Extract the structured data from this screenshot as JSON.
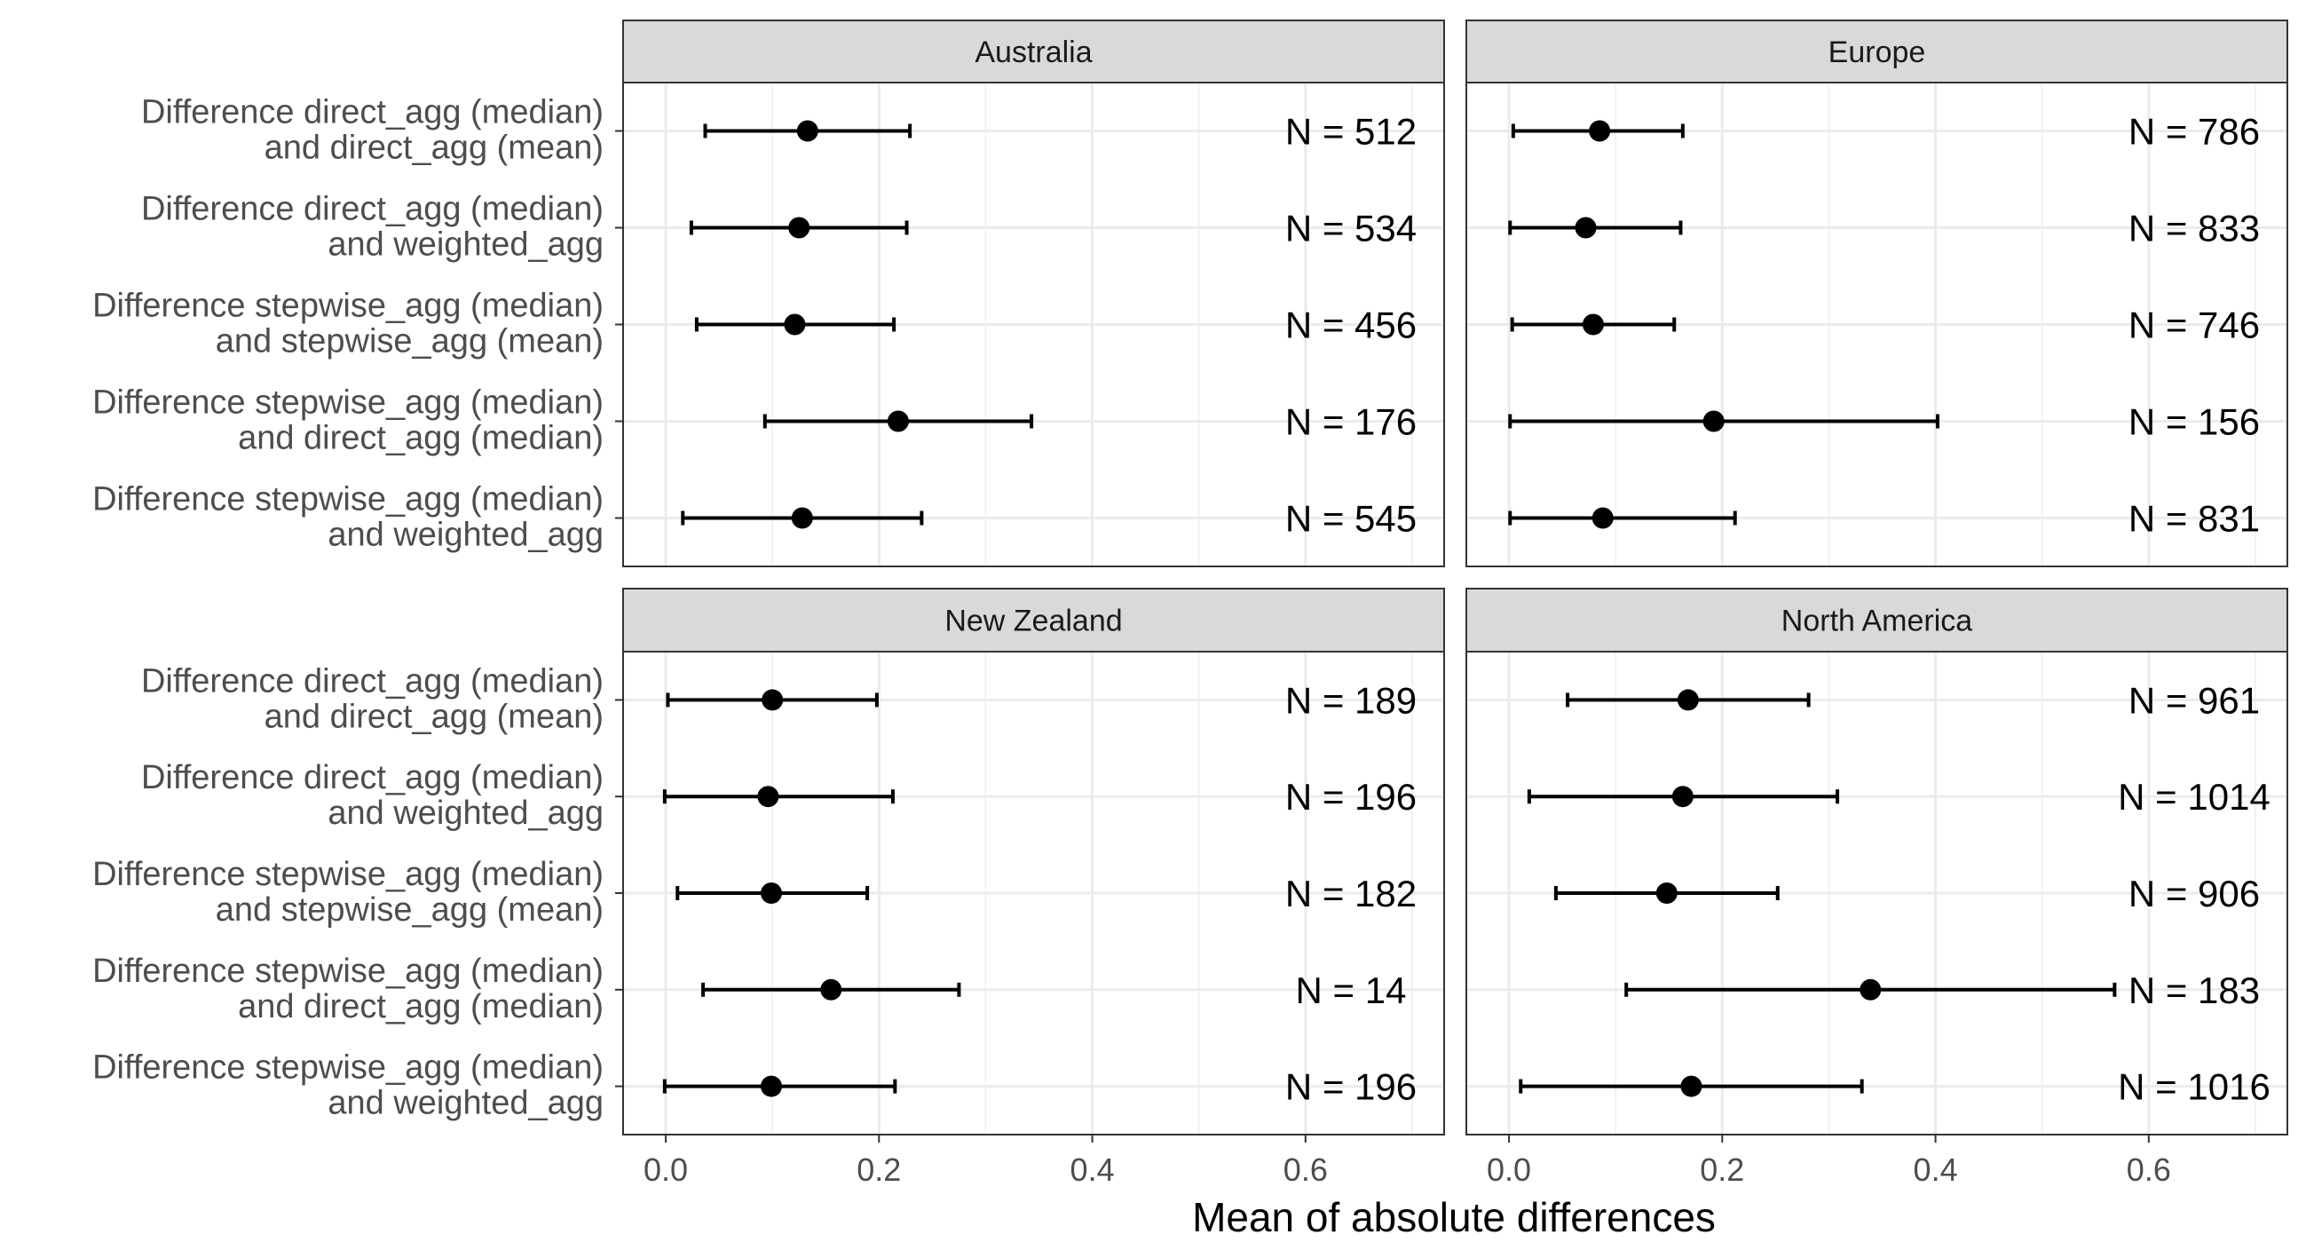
{
  "chart_data": {
    "type": "errorbar-dot",
    "xlabel": "Mean of absolute differences",
    "xlim": [
      -0.04,
      0.73
    ],
    "xticks": [
      0.0,
      0.2,
      0.4,
      0.6
    ],
    "xtick_labels": [
      "0.0",
      "0.2",
      "0.4",
      "0.6"
    ],
    "grid": true,
    "categories": [
      [
        "Difference direct_agg (median)",
        "and direct_agg (mean)"
      ],
      [
        "Difference direct_agg (median)",
        "and weighted_agg"
      ],
      [
        "Difference stepwise_agg (median)",
        "and stepwise_agg (mean)"
      ],
      [
        "Difference stepwise_agg (median)",
        "and direct_agg (median)"
      ],
      [
        "Difference stepwise_agg (median)",
        "and weighted_agg"
      ]
    ],
    "panels": [
      {
        "title": "Australia",
        "mean": [
          0.133,
          0.125,
          0.121,
          0.218,
          0.128
        ],
        "lower": [
          0.037,
          0.024,
          0.029,
          0.093,
          0.016
        ],
        "upper": [
          0.229,
          0.226,
          0.214,
          0.343,
          0.24
        ],
        "n_labels": [
          "N = 512",
          "N = 534",
          "N = 456",
          "N = 176",
          "N = 545"
        ]
      },
      {
        "title": "Europe",
        "mean": [
          0.085,
          0.072,
          0.079,
          0.192,
          0.088
        ],
        "lower": [
          0.004,
          0.001,
          0.003,
          0.001,
          0.001
        ],
        "upper": [
          0.163,
          0.161,
          0.155,
          0.402,
          0.212
        ],
        "n_labels": [
          "N = 786",
          "N = 833",
          "N = 746",
          "N = 156",
          "N = 831"
        ]
      },
      {
        "title": "New Zealand",
        "mean": [
          0.1,
          0.096,
          0.099,
          0.155,
          0.099
        ],
        "lower": [
          0.002,
          -0.001,
          0.011,
          0.035,
          -0.001
        ],
        "upper": [
          0.198,
          0.213,
          0.189,
          0.275,
          0.215
        ],
        "n_labels": [
          "N = 189",
          "N = 196",
          "N = 182",
          "N = 14",
          "N = 196"
        ]
      },
      {
        "title": "North America",
        "mean": [
          0.168,
          0.163,
          0.148,
          0.339,
          0.171
        ],
        "lower": [
          0.055,
          0.019,
          0.044,
          0.11,
          0.011
        ],
        "upper": [
          0.281,
          0.308,
          0.252,
          0.568,
          0.331
        ],
        "n_labels": [
          "N = 961",
          "N = 1014",
          "N = 906",
          "N = 183",
          "N = 1016"
        ]
      }
    ]
  }
}
